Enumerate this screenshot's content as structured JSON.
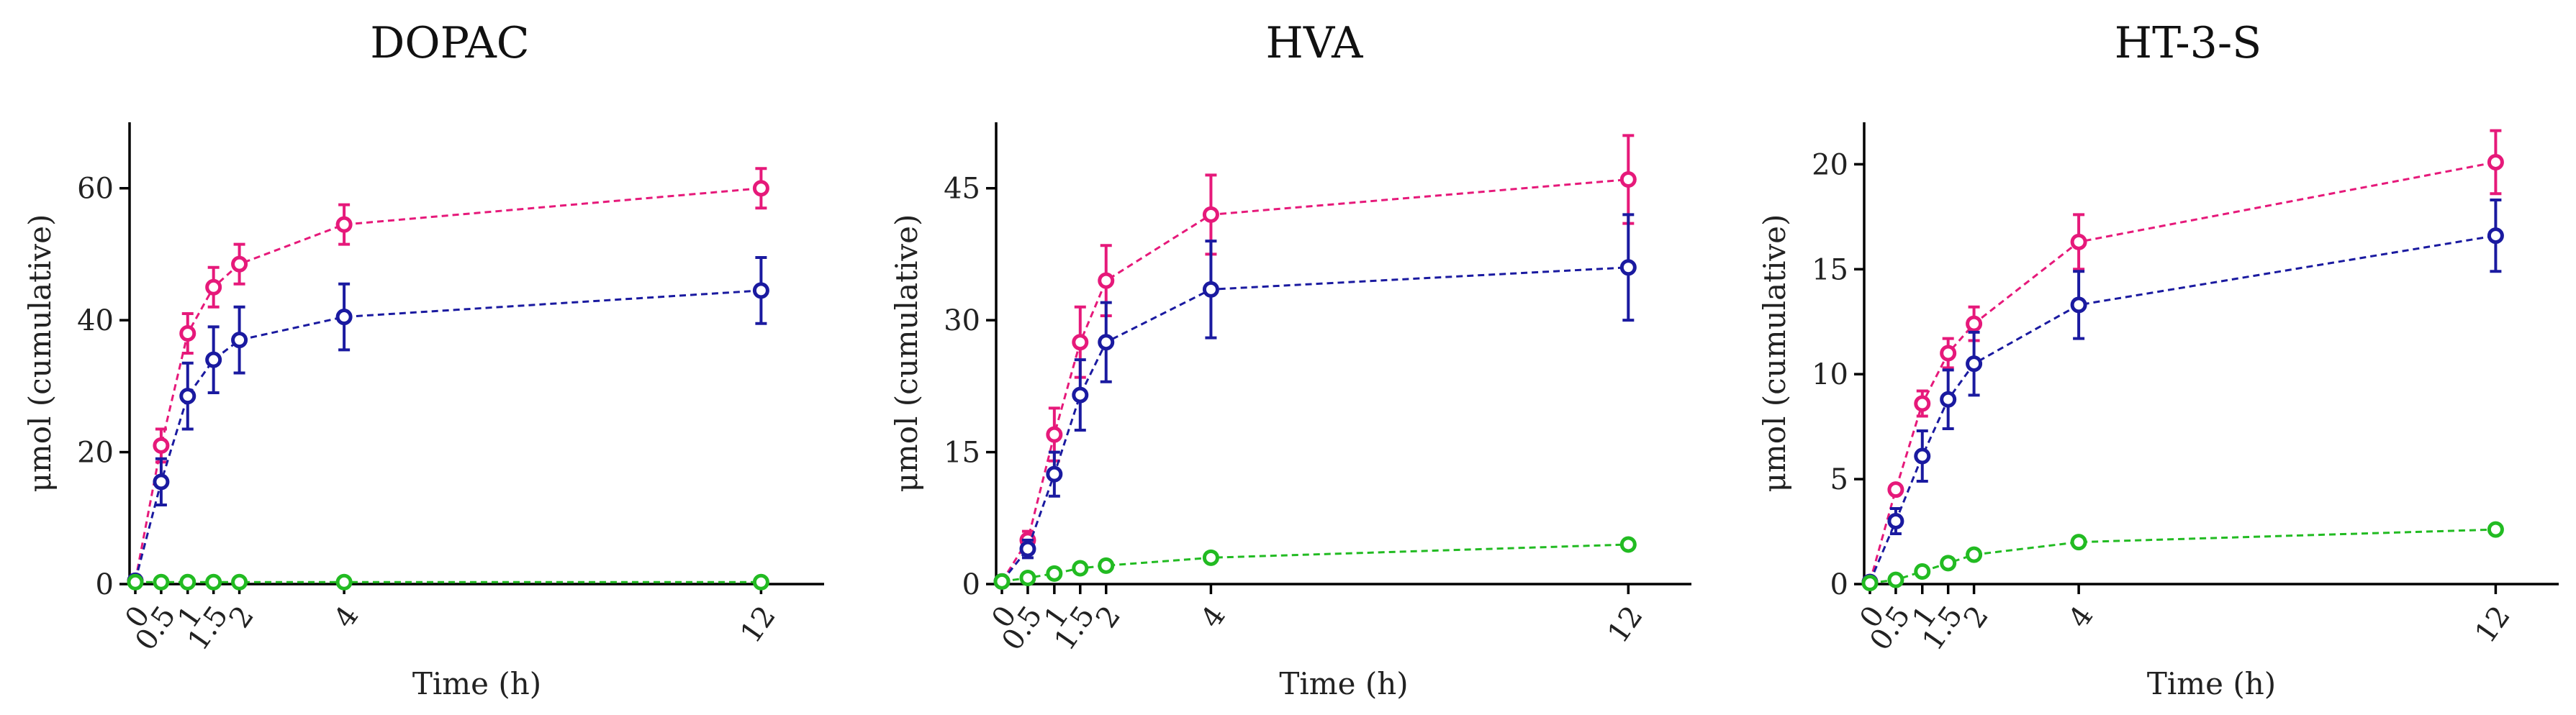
{
  "chart_data": [
    {
      "type": "line",
      "title": "DOPAC",
      "xlabel": "Time (h)",
      "ylabel": "μmol (cumulative)",
      "x": [
        0,
        0.5,
        1,
        1.5,
        2,
        4,
        12
      ],
      "x_tick_labels": [
        "0",
        "0.5",
        "1",
        "1.5",
        "2",
        "4",
        "12"
      ],
      "ylim": [
        0,
        70
      ],
      "y_ticks": [
        0,
        20,
        40,
        60
      ],
      "series": [
        {
          "name": "magenta",
          "color": "#e6197a",
          "values": [
            0.5,
            21,
            38,
            45,
            48.5,
            54.5,
            60
          ],
          "errors": [
            0,
            2.5,
            3,
            3,
            3,
            3,
            3
          ]
        },
        {
          "name": "blue",
          "color": "#1a1aa0",
          "values": [
            0.5,
            15.5,
            28.5,
            34,
            37,
            40.5,
            44.5
          ],
          "errors": [
            0,
            3.5,
            5,
            5,
            5,
            5,
            5
          ]
        },
        {
          "name": "green",
          "color": "#22bb22",
          "values": [
            0.3,
            0.3,
            0.3,
            0.3,
            0.3,
            0.3,
            0.3
          ],
          "errors": [
            0,
            0,
            0,
            0,
            0,
            0,
            0
          ]
        }
      ]
    },
    {
      "type": "line",
      "title": "HVA",
      "xlabel": "Time (h)",
      "ylabel": "μmol (cumulative)",
      "x": [
        0,
        0.5,
        1,
        1.5,
        2,
        4,
        12
      ],
      "x_tick_labels": [
        "0",
        "0.5",
        "1",
        "1.5",
        "2",
        "4",
        "12"
      ],
      "ylim": [
        0,
        52.5
      ],
      "y_ticks": [
        0,
        15,
        30,
        45
      ],
      "series": [
        {
          "name": "magenta",
          "color": "#e6197a",
          "values": [
            0.3,
            5,
            17,
            27.5,
            34.5,
            42,
            46
          ],
          "errors": [
            0,
            1,
            3,
            4,
            4,
            4.5,
            5
          ]
        },
        {
          "name": "blue",
          "color": "#1a1aa0",
          "values": [
            0.3,
            4,
            12.5,
            21.5,
            27.5,
            33.5,
            36
          ],
          "errors": [
            0,
            1,
            2.5,
            4,
            4.5,
            5.5,
            6
          ]
        },
        {
          "name": "green",
          "color": "#22bb22",
          "values": [
            0.3,
            0.7,
            1.2,
            1.8,
            2.1,
            3,
            4.5
          ],
          "errors": [
            0,
            0,
            0.3,
            0.3,
            0.3,
            0.3,
            0.3
          ]
        }
      ]
    },
    {
      "type": "line",
      "title": "HT-3-S",
      "xlabel": "Time (h)",
      "ylabel": "μmol (cumulative)",
      "x": [
        0,
        0.5,
        1,
        1.5,
        2,
        4,
        12
      ],
      "x_tick_labels": [
        "0",
        "0.5",
        "1",
        "1.5",
        "2",
        "4",
        "12"
      ],
      "ylim": [
        0,
        22
      ],
      "y_ticks": [
        0,
        5,
        10,
        15,
        20
      ],
      "series": [
        {
          "name": "magenta",
          "color": "#e6197a",
          "values": [
            0.1,
            4.5,
            8.6,
            11,
            12.4,
            16.3,
            20.1
          ],
          "errors": [
            0,
            0.2,
            0.6,
            0.7,
            0.8,
            1.3,
            1.5
          ]
        },
        {
          "name": "blue",
          "color": "#1a1aa0",
          "values": [
            0.1,
            3,
            6.1,
            8.8,
            10.5,
            13.3,
            16.6
          ],
          "errors": [
            0,
            0.6,
            1.2,
            1.4,
            1.5,
            1.6,
            1.7
          ]
        },
        {
          "name": "green",
          "color": "#22bb22",
          "values": [
            0.05,
            0.2,
            0.6,
            1,
            1.4,
            2,
            2.6
          ],
          "errors": [
            0,
            0,
            0,
            0.1,
            0.1,
            0.1,
            0.2
          ]
        }
      ]
    }
  ]
}
